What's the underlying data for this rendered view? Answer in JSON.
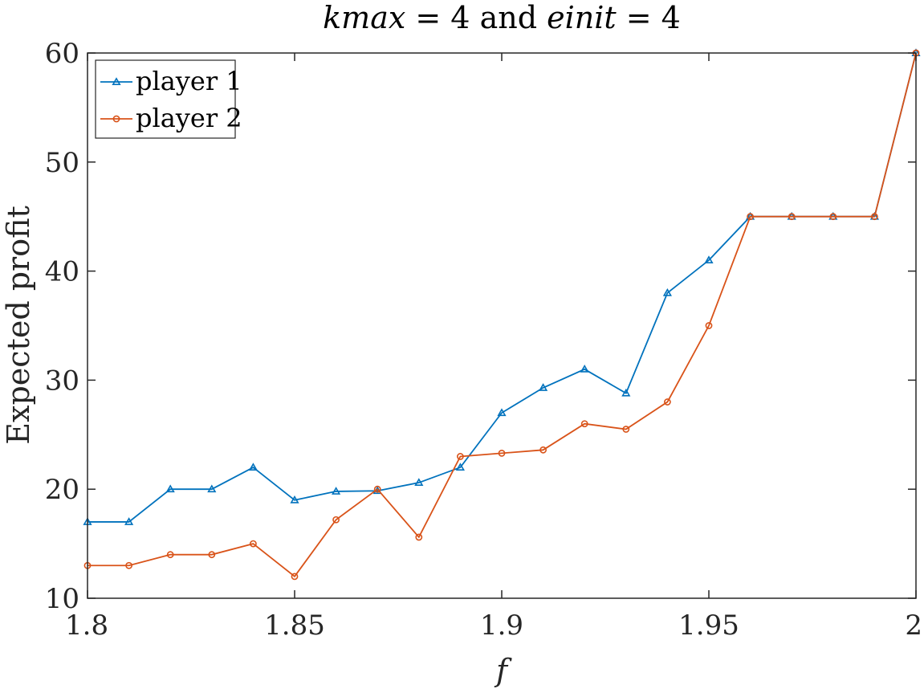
{
  "chart_data": {
    "type": "line",
    "title": {
      "part1": "kmax",
      "part2": " = 4 and ",
      "part3": "einit",
      "part4": " = 4"
    },
    "xlabel": "f",
    "ylabel": "Expected profit",
    "xlim": [
      1.8,
      2.0
    ],
    "ylim": [
      10,
      60
    ],
    "x_ticks": [
      1.8,
      1.85,
      1.9,
      1.95,
      2.0
    ],
    "x_tick_labels": [
      "1.8",
      "1.85",
      "1.9",
      "1.95",
      "2"
    ],
    "y_ticks": [
      10,
      20,
      30,
      40,
      50,
      60
    ],
    "y_tick_labels": [
      "10",
      "20",
      "30",
      "40",
      "50",
      "60"
    ],
    "grid": false,
    "legend_position": "top-left",
    "x": [
      1.8,
      1.81,
      1.82,
      1.83,
      1.84,
      1.85,
      1.86,
      1.87,
      1.88,
      1.89,
      1.9,
      1.91,
      1.92,
      1.93,
      1.94,
      1.95,
      1.96,
      1.97,
      1.98,
      1.99,
      2.0
    ],
    "series": [
      {
        "name": "player 1",
        "color": "#0072BD",
        "marker": "triangle",
        "values": [
          17,
          17,
          20,
          20,
          22,
          19,
          19.8,
          19.85,
          20.6,
          22,
          27,
          29.3,
          31,
          28.8,
          38,
          41,
          45,
          45,
          45,
          45,
          60
        ]
      },
      {
        "name": "player 2",
        "color": "#D95319",
        "marker": "circle",
        "values": [
          13,
          13,
          14,
          14,
          15,
          12,
          17.2,
          20,
          15.6,
          23,
          23.3,
          23.6,
          26,
          25.5,
          28,
          35,
          45,
          45,
          45,
          45,
          60
        ]
      }
    ]
  }
}
